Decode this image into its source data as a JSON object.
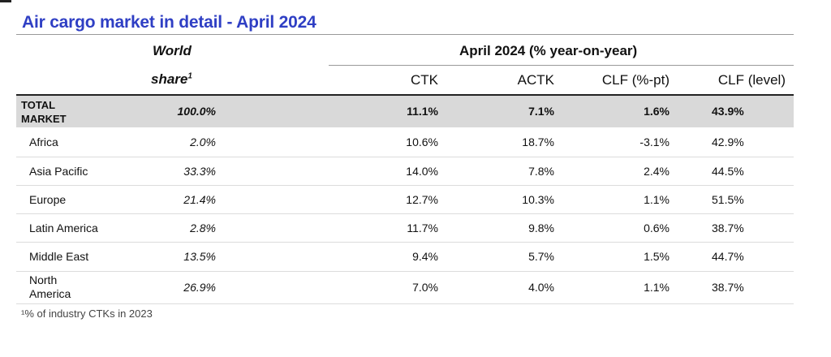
{
  "title": "Air cargo market in detail - April 2024",
  "header": {
    "world": "World",
    "share": "share",
    "share_sup": "1",
    "group": "April 2024 (% year-on-year)",
    "columns": [
      "CTK",
      "ACTK",
      "CLF (%-pt)",
      "CLF (level)"
    ]
  },
  "total": {
    "region": "TOTAL MARKET",
    "share": "100.0%",
    "ctk": "11.1%",
    "actk": "7.1%",
    "clf_pt": "1.6%",
    "clf_level": "43.9%"
  },
  "rows": [
    {
      "region": "Africa",
      "share": "2.0%",
      "ctk": "10.6%",
      "actk": "18.7%",
      "clf_pt": "-3.1%",
      "clf_level": "42.9%"
    },
    {
      "region": "Asia Pacific",
      "share": "33.3%",
      "ctk": "14.0%",
      "actk": "7.8%",
      "clf_pt": "2.4%",
      "clf_level": "44.5%"
    },
    {
      "region": "Europe",
      "share": "21.4%",
      "ctk": "12.7%",
      "actk": "10.3%",
      "clf_pt": "1.1%",
      "clf_level": "51.5%"
    },
    {
      "region": "Latin America",
      "share": "2.8%",
      "ctk": "11.7%",
      "actk": "9.8%",
      "clf_pt": "0.6%",
      "clf_level": "38.7%"
    },
    {
      "region": "Middle East",
      "share": "13.5%",
      "ctk": "9.4%",
      "actk": "5.7%",
      "clf_pt": "1.5%",
      "clf_level": "44.7%"
    },
    {
      "region": "North America",
      "share": "26.9%",
      "ctk": "7.0%",
      "actk": "4.0%",
      "clf_pt": "1.1%",
      "clf_level": "38.7%"
    }
  ],
  "footnote": "¹% of industry CTKs in 2023"
}
